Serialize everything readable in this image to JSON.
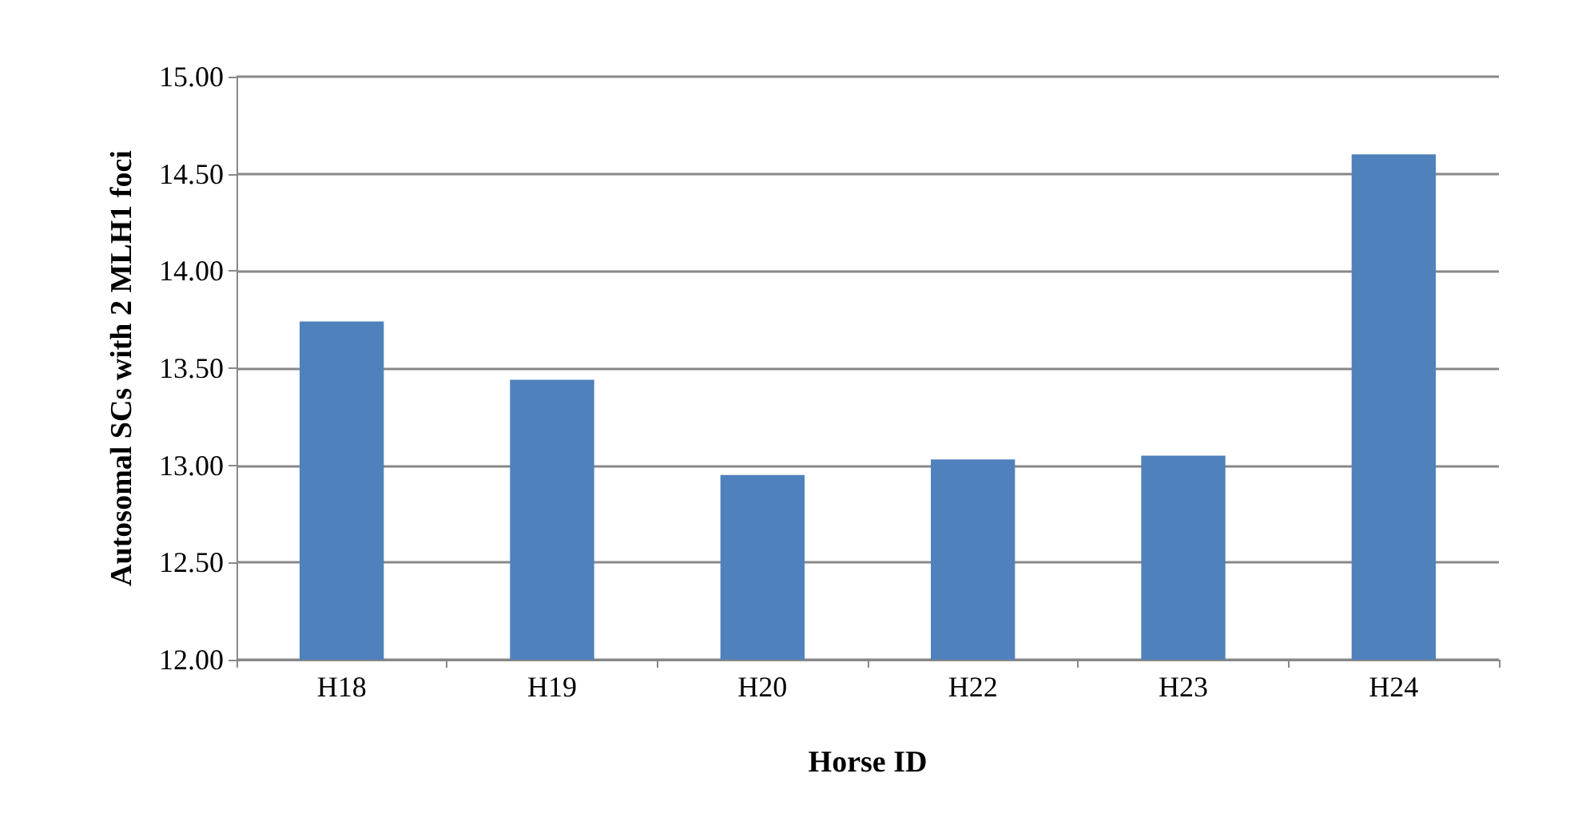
{
  "chart_data": {
    "type": "bar",
    "xlabel": "Horse ID",
    "ylabel": "Autosomal SCs with 2 MLH1 foci",
    "categories": [
      "H18",
      "H19",
      "H20",
      "H22",
      "H23",
      "H24"
    ],
    "values": [
      13.74,
      13.44,
      12.95,
      13.03,
      13.05,
      14.6
    ],
    "color": "#4f81bd",
    "ylim": [
      12,
      15
    ],
    "yticks": [
      {
        "value": 12,
        "label": "12.00"
      },
      {
        "value": 12.5,
        "label": "12.50"
      },
      {
        "value": 13,
        "label": "13.00"
      },
      {
        "value": 13.5,
        "label": "13.50"
      },
      {
        "value": 14,
        "label": "14.00"
      },
      {
        "value": 14.5,
        "label": "14.50"
      },
      {
        "value": 15,
        "label": "15.00"
      }
    ],
    "grid": "y"
  }
}
